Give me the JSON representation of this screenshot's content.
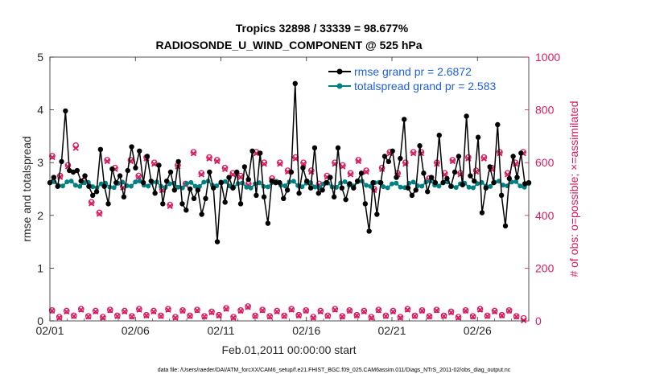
{
  "chart_data": {
    "type": "line",
    "title_line1": "Tropics 32898 / 33339 = 98.677%",
    "title_line2": "RADIOSONDE_U_WIND_COMPONENT @ 525 hPa",
    "xlabel": "Feb.01,2011 00:00:00 start",
    "ylabel_left": "rmse and totalspread",
    "ylabel_right": "# of obs: o=possible; ×=assimilated",
    "xlim": [
      1,
      29
    ],
    "ylim_left": [
      0,
      5
    ],
    "ylim_right": [
      0,
      1000
    ],
    "x_ticks": [
      1,
      6,
      11,
      16,
      21,
      26
    ],
    "x_tick_labels": [
      "02/01",
      "02/06",
      "02/11",
      "02/16",
      "02/21",
      "02/26"
    ],
    "y_ticks_left": [
      0,
      1,
      2,
      3,
      4,
      5
    ],
    "y_ticks_right": [
      0,
      200,
      400,
      600,
      800,
      1000
    ],
    "series": [
      {
        "name": "rmse",
        "legend_label": "rmse grand pr = 2.6872",
        "color": "#000000",
        "values": [
          2.62,
          2.72,
          2.55,
          3.02,
          3.98,
          2.85,
          2.82,
          2.85,
          2.65,
          2.75,
          2.55,
          2.38,
          2.45,
          3.25,
          2.55,
          2.22,
          2.88,
          2.62,
          2.75,
          2.35,
          2.85,
          3.3,
          2.9,
          3.22,
          2.62,
          3.12,
          2.65,
          2.42,
          2.95,
          2.22,
          2.65,
          2.82,
          2.48,
          3.02,
          2.22,
          2.1,
          2.5,
          2.32,
          2.48,
          2.02,
          2.32,
          2.82,
          2.52,
          1.5,
          2.62,
          2.25,
          2.72,
          2.52,
          2.82,
          2.22,
          2.92,
          2.68,
          3.22,
          2.38,
          3.18,
          2.35,
          1.85,
          2.65,
          2.62,
          2.62,
          2.32,
          2.48,
          2.82,
          4.5,
          2.42,
          2.9,
          2.65,
          2.52,
          3.28,
          2.42,
          2.48,
          2.62,
          2.72,
          2.35,
          3.28,
          2.52,
          2.3,
          2.6,
          2.52,
          2.65,
          2.8,
          2.22,
          1.7,
          2.62,
          2.02,
          2.62,
          3.12,
          3.02,
          3.22,
          2.72,
          3.08,
          3.82,
          2.52,
          2.38,
          2.48,
          3.32,
          2.8,
          2.45,
          2.72,
          2.62,
          3.52,
          2.62,
          2.7,
          2.55,
          2.82,
          3.12,
          2.58,
          3.88,
          2.75,
          2.65,
          3.48,
          2.05,
          2.52,
          2.92,
          2.62,
          3.72,
          2.38,
          1.8,
          2.7,
          3.12,
          2.72,
          3.18,
          2.6,
          2.62
        ]
      },
      {
        "name": "totalspread",
        "legend_label": "totalspread grand pr = 2.583",
        "color": "#008080",
        "base": 2.585,
        "amplitude": 0.055,
        "cycle_per_day": 4
      }
    ],
    "obs_possible_top": [
      625,
      550,
      590,
      665,
      530,
      450,
      410,
      610,
      580,
      510,
      610,
      550,
      620,
      600,
      500,
      440,
      590,
      520,
      640,
      560,
      620,
      610,
      580,
      560,
      550,
      520,
      640,
      600,
      540,
      600,
      570,
      620,
      600,
      570,
      520,
      550,
      600,
      590,
      560,
      610,
      570,
      500,
      580,
      640,
      560,
      600,
      640,
      640,
      540,
      600,
      560,
      610,
      560,
      620,
      570,
      620,
      580,
      640,
      560,
      600,
      640
    ],
    "obs_assimilated_top": [
      620,
      545,
      585,
      655,
      525,
      445,
      405,
      605,
      575,
      505,
      605,
      545,
      615,
      595,
      495,
      435,
      585,
      515,
      635,
      555,
      615,
      605,
      575,
      555,
      545,
      515,
      635,
      595,
      535,
      595,
      565,
      615,
      595,
      565,
      515,
      545,
      595,
      585,
      555,
      605,
      565,
      495,
      575,
      635,
      555,
      595,
      635,
      635,
      535,
      595,
      555,
      605,
      555,
      615,
      565,
      615,
      575,
      635,
      555,
      595,
      635
    ],
    "obs_possible_bottom": [
      40,
      15,
      38,
      20,
      45,
      18,
      38,
      15,
      42,
      20,
      38,
      18,
      45,
      22,
      38,
      20,
      45,
      15,
      40,
      20,
      42,
      18,
      35,
      22,
      48,
      15,
      40,
      55,
      20,
      42,
      18,
      38,
      20,
      45,
      22,
      40,
      15,
      38,
      20,
      45,
      18,
      40,
      22,
      38,
      15,
      42,
      20,
      38,
      15,
      45,
      20,
      40,
      18,
      42,
      20,
      35,
      15,
      40,
      18,
      45,
      20,
      38,
      22,
      40,
      18,
      10
    ],
    "obs_assimilated_bottom": [
      38,
      12,
      35,
      18,
      42,
      16,
      35,
      12,
      40,
      18,
      35,
      16,
      42,
      20,
      35,
      18,
      42,
      12,
      38,
      18,
      40,
      16,
      32,
      20,
      45,
      12,
      38,
      52,
      18,
      40,
      16,
      35,
      18,
      42,
      20,
      38,
      12,
      35,
      18,
      42,
      16,
      38,
      20,
      35,
      12,
      40,
      18,
      35,
      12,
      42,
      18,
      38,
      16,
      40,
      18,
      32,
      12,
      38,
      16,
      42,
      18,
      35,
      20,
      38,
      16,
      2
    ],
    "obs_color": "#d81b60"
  },
  "footer": "data file: /Users/raeder/DAI/ATM_forcXX/CAM6_setup/f.e21.FHIST_BGC.f09_025.CAM6assim.011/Diags_NTrS_2011-02/obs_diag_output.nc"
}
